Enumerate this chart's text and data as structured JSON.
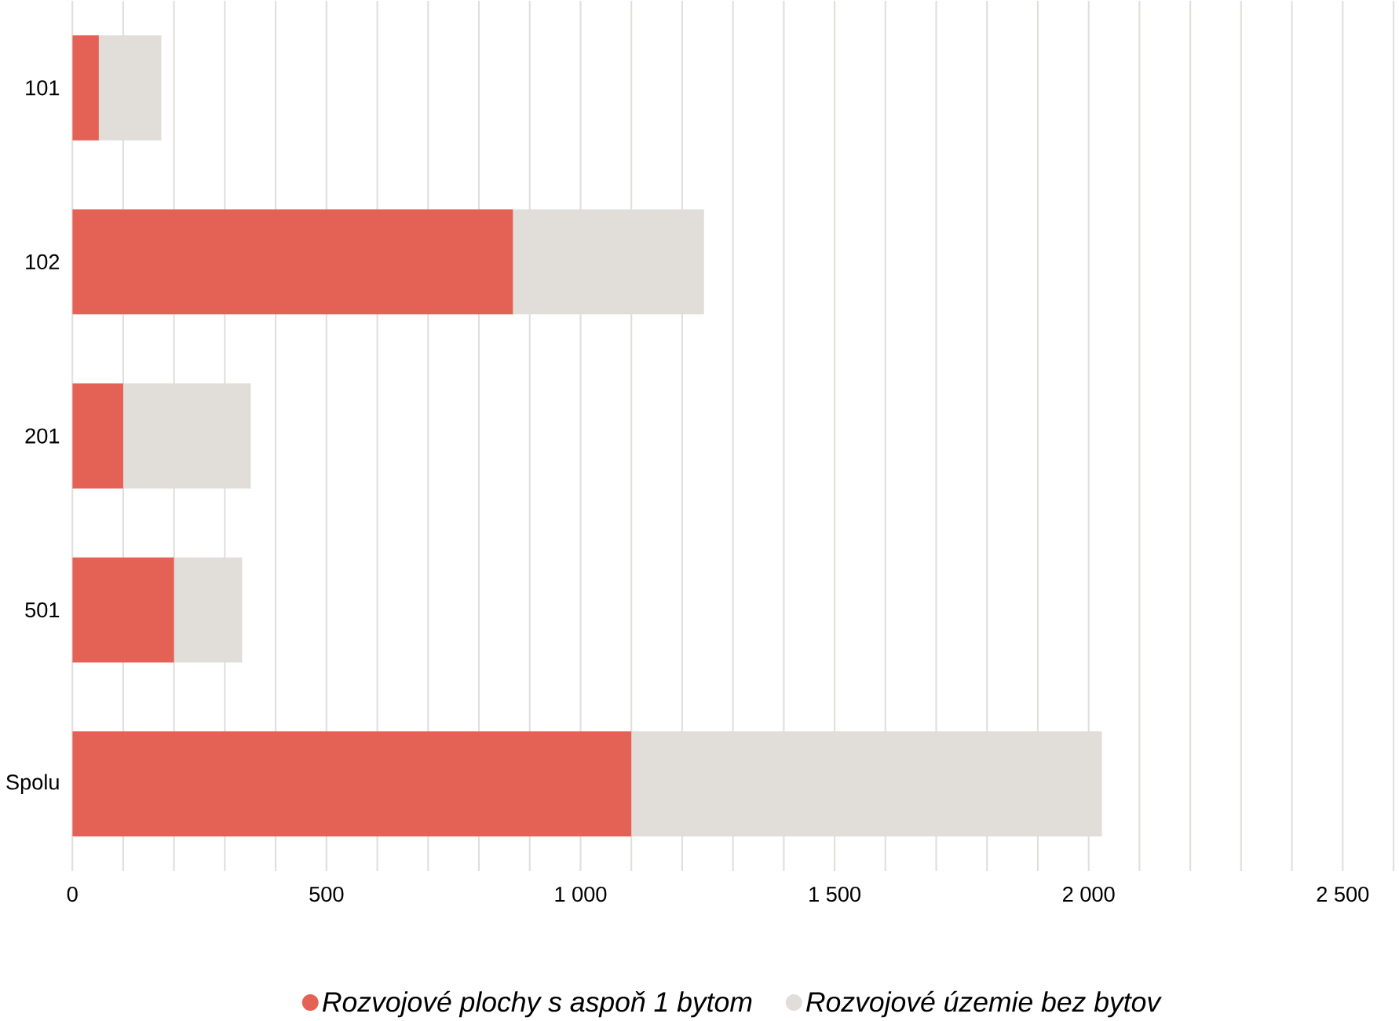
{
  "chart_data": {
    "type": "bar",
    "orientation": "horizontal",
    "stacked": true,
    "categories": [
      "101",
      "102",
      "201",
      "501",
      "Spolu"
    ],
    "series": [
      {
        "name": "Rozvojové plochy s aspoň 1 bytom",
        "color": "#e46155",
        "values": [
          52,
          867,
          100,
          200,
          1100
        ]
      },
      {
        "name": "Rozvojové územie bez bytov",
        "color": "#e1ddd9",
        "values": [
          123,
          376,
          251,
          134,
          926
        ]
      }
    ],
    "xlim": [
      0,
      2600
    ],
    "xticks": [
      0,
      {
        "value": 100,
        "label": null
      },
      {
        "value": 200,
        "label": null
      },
      {
        "value": 300,
        "label": null
      },
      {
        "value": 400,
        "label": null
      },
      500,
      {
        "value": 600,
        "label": null
      },
      {
        "value": 700,
        "label": null
      },
      {
        "value": 800,
        "label": null
      },
      {
        "value": 900,
        "label": null
      },
      {
        "value": 1000,
        "label": "1 000"
      },
      {
        "value": 1100,
        "label": null
      },
      {
        "value": 1200,
        "label": null
      },
      {
        "value": 1300,
        "label": null
      },
      {
        "value": 1400,
        "label": null
      },
      {
        "value": 1500,
        "label": "1 500"
      },
      {
        "value": 1600,
        "label": null
      },
      {
        "value": 1700,
        "label": null
      },
      {
        "value": 1800,
        "label": null
      },
      {
        "value": 1900,
        "label": null
      },
      {
        "value": 2000,
        "label": "2 000"
      },
      {
        "value": 2100,
        "label": null
      },
      {
        "value": 2200,
        "label": null
      },
      {
        "value": 2300,
        "label": null
      },
      {
        "value": 2400,
        "label": null
      },
      {
        "value": 2500,
        "label": "2 500"
      },
      {
        "value": 2600,
        "label": null
      }
    ],
    "grid": "x",
    "legend": "bottom"
  }
}
